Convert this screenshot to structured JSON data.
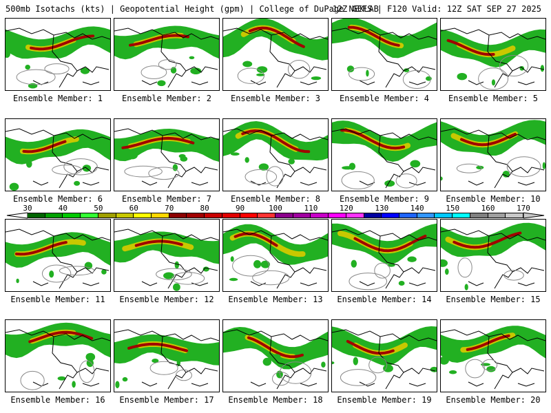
{
  "header": {
    "title_left": "500mb Isotachs (kts) | Geopotential Height (gpm) | College of DuPage NEXLAB",
    "title_right": "12Z GEFS | F120 Valid: 12Z SAT SEP 27 2025"
  },
  "colorbar": {
    "ticks": [
      "30",
      "40",
      "50",
      "60",
      "70",
      "80",
      "90",
      "100",
      "110",
      "120",
      "130",
      "140",
      "150",
      "160",
      "170"
    ],
    "colors": [
      "#006400",
      "#00a000",
      "#00c800",
      "#32ff32",
      "#a0a000",
      "#c8c800",
      "#ffff00",
      "#ffd700",
      "#8b0000",
      "#a00000",
      "#c80000",
      "#e00000",
      "#ff0000",
      "#ff3232",
      "#8b008b",
      "#a000a0",
      "#c800c8",
      "#ff00ff",
      "#ff32ff",
      "#0000a0",
      "#0000ff",
      "#1e64ff",
      "#3296ff",
      "#00c8ff",
      "#00ffff",
      "#808080",
      "#a0a0a0",
      "#c8c8c8"
    ]
  },
  "panels": [
    {
      "label": "Ensemble Member: 1"
    },
    {
      "label": "Ensemble Member: 2"
    },
    {
      "label": "Ensemble Member: 3"
    },
    {
      "label": "Ensemble Member: 4"
    },
    {
      "label": "Ensemble Member: 5"
    },
    {
      "label": "Ensemble Member: 6"
    },
    {
      "label": "Ensemble Member: 7"
    },
    {
      "label": "Ensemble Member: 8"
    },
    {
      "label": "Ensemble Member: 9"
    },
    {
      "label": "Ensemble Member: 10"
    },
    {
      "label": "Ensemble Member: 11"
    },
    {
      "label": "Ensemble Member: 12"
    },
    {
      "label": "Ensemble Member: 13"
    },
    {
      "label": "Ensemble Member: 14"
    },
    {
      "label": "Ensemble Member: 15"
    },
    {
      "label": "Ensemble Member: 16"
    },
    {
      "label": "Ensemble Member: 17"
    },
    {
      "label": "Ensemble Member: 18"
    },
    {
      "label": "Ensemble Member: 19"
    },
    {
      "label": "Ensemble Member: 20"
    }
  ]
}
